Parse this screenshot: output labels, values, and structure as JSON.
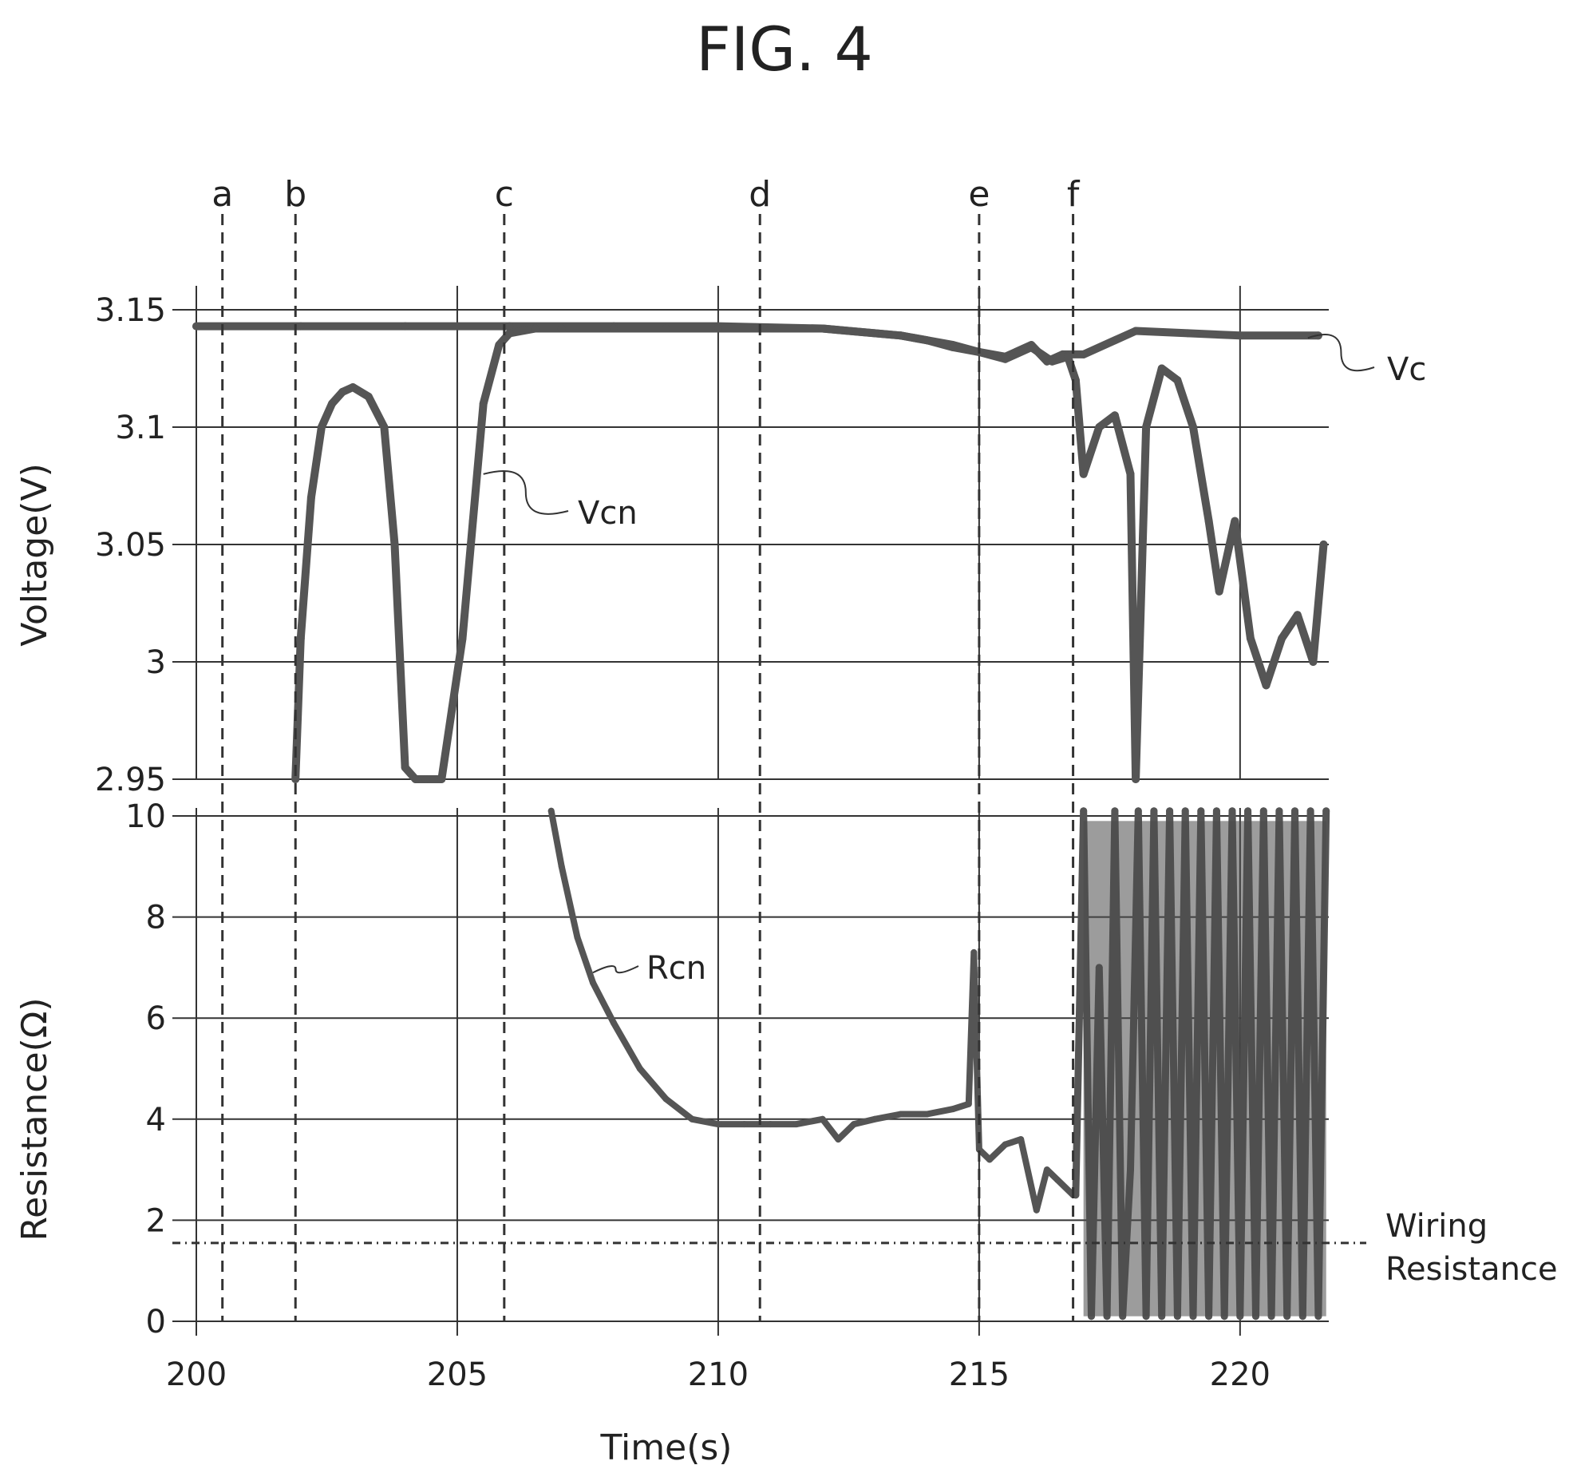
{
  "figure_title": "FIG. 4",
  "chart_data": [
    {
      "type": "line",
      "panel": "voltage",
      "ylabel": "Voltage(V)",
      "xlabel": "",
      "ylim": [
        2.95,
        3.15
      ],
      "xlim": [
        200,
        221.7
      ],
      "yticks": [
        {
          "value": 3.15,
          "label": "3.15"
        },
        {
          "value": 3.1,
          "label": "3.1"
        },
        {
          "value": 3.05,
          "label": "3.05"
        },
        {
          "value": 3.0,
          "label": "3"
        },
        {
          "value": 2.95,
          "label": "2.95"
        }
      ],
      "grid": true,
      "series": [
        {
          "name": "Vc",
          "color": "#555555",
          "x": [
            200,
            202,
            204,
            206,
            208,
            210,
            212,
            213.5,
            214.5,
            215,
            215.5,
            216,
            216.3,
            216.6,
            217,
            218,
            219,
            220,
            221.5
          ],
          "y": [
            3.143,
            3.143,
            3.143,
            3.143,
            3.143,
            3.143,
            3.142,
            3.139,
            3.135,
            3.132,
            3.13,
            3.135,
            3.128,
            3.131,
            3.131,
            3.141,
            3.14,
            3.139,
            3.139
          ]
        },
        {
          "name": "Vcn",
          "color": "#555555",
          "x": [
            201.9,
            202.0,
            202.2,
            202.4,
            202.6,
            202.8,
            203.0,
            203.3,
            203.6,
            203.8,
            204.0,
            204.2,
            204.4,
            204.7,
            204.9,
            205.1,
            205.3,
            205.5,
            205.8,
            206.0,
            206.5,
            207,
            208,
            209,
            210,
            211,
            212,
            212.5,
            213,
            213.5,
            214,
            214.5,
            215,
            215.5,
            216,
            216.4,
            216.7,
            216.85,
            217,
            217.3,
            217.6,
            217.9,
            218.0,
            218.2,
            218.5,
            218.8,
            219.1,
            219.4,
            219.6,
            219.9,
            220.2,
            220.5,
            220.8,
            221.1,
            221.4,
            221.6
          ],
          "y": [
            2.95,
            3.01,
            3.07,
            3.1,
            3.11,
            3.115,
            3.117,
            3.113,
            3.1,
            3.05,
            2.955,
            2.95,
            2.95,
            2.95,
            2.98,
            3.01,
            3.06,
            3.11,
            3.135,
            3.14,
            3.142,
            3.142,
            3.142,
            3.142,
            3.142,
            3.142,
            3.142,
            3.141,
            3.14,
            3.139,
            3.137,
            3.134,
            3.132,
            3.129,
            3.134,
            3.128,
            3.13,
            3.12,
            3.08,
            3.1,
            3.105,
            3.08,
            2.95,
            3.1,
            3.125,
            3.12,
            3.1,
            3.06,
            3.03,
            3.06,
            3.01,
            2.99,
            3.01,
            3.02,
            3.0,
            3.05
          ]
        }
      ],
      "markers": [
        {
          "label": "a",
          "x": 200.5
        },
        {
          "label": "b",
          "x": 201.9
        },
        {
          "label": "c",
          "x": 205.9
        },
        {
          "label": "d",
          "x": 210.8
        },
        {
          "label": "e",
          "x": 215.0
        },
        {
          "label": "f",
          "x": 216.8
        }
      ],
      "annotations": [
        {
          "text": "Vc",
          "series": "Vc"
        },
        {
          "text": "Vcn",
          "series": "Vcn"
        }
      ]
    },
    {
      "type": "line",
      "panel": "resistance",
      "ylabel": "Resistance(Ω)",
      "xlabel": "Time(s)",
      "ylim": [
        0,
        10
      ],
      "xlim": [
        200,
        221.7
      ],
      "yticks": [
        {
          "value": 10,
          "label": "10"
        },
        {
          "value": 8,
          "label": "8"
        },
        {
          "value": 6,
          "label": "6"
        },
        {
          "value": 4,
          "label": "4"
        },
        {
          "value": 2,
          "label": "2"
        },
        {
          "value": 0,
          "label": "0"
        }
      ],
      "xticks": [
        {
          "value": 200,
          "label": "200"
        },
        {
          "value": 205,
          "label": "205"
        },
        {
          "value": 210,
          "label": "210"
        },
        {
          "value": 215,
          "label": "215"
        },
        {
          "value": 220,
          "label": "220"
        }
      ],
      "grid": true,
      "series": [
        {
          "name": "Rcn",
          "color": "#555555",
          "x": [
            206.8,
            207.0,
            207.3,
            207.6,
            208.0,
            208.5,
            209.0,
            209.5,
            210.0,
            210.5,
            211.0,
            211.5,
            212.0,
            212.3,
            212.6,
            213.0,
            213.5,
            214.0,
            214.5,
            214.8,
            214.9,
            215.0,
            215.2,
            215.5,
            215.8,
            216.1,
            216.3,
            216.5,
            216.8
          ],
          "y": [
            10.1,
            9.0,
            7.6,
            6.7,
            5.9,
            5.0,
            4.4,
            4.0,
            3.9,
            3.9,
            3.9,
            3.9,
            4.0,
            3.6,
            3.9,
            4.0,
            4.1,
            4.1,
            4.2,
            4.3,
            7.3,
            3.4,
            3.2,
            3.5,
            3.6,
            2.2,
            3.0,
            2.8,
            2.5
          ]
        },
        {
          "name": "",
          "color": "#555555",
          "x": [
            216.85,
            217.0,
            217.15,
            217.3,
            217.45,
            217.6,
            217.75,
            217.9,
            218.05,
            218.2,
            218.35,
            218.5,
            218.65,
            218.8,
            218.95,
            219.1,
            219.25,
            219.4,
            219.55,
            219.7,
            219.85,
            220.0,
            220.15,
            220.3,
            220.45,
            220.6,
            220.75,
            220.9,
            221.05,
            221.2,
            221.35,
            221.5,
            221.65
          ],
          "y": [
            2.5,
            10.1,
            0.1,
            7.0,
            0.1,
            10.1,
            0.1,
            3.0,
            10.1,
            0.1,
            10.1,
            0.1,
            10.1,
            0.1,
            10.1,
            0.1,
            10.1,
            0.1,
            10.1,
            0.1,
            10.1,
            0.1,
            10.1,
            0.1,
            10.1,
            0.1,
            10.1,
            0.1,
            10.1,
            0.1,
            10.1,
            0.1,
            10.1
          ]
        }
      ],
      "reference_lines": [
        {
          "label": "Wiring Resistance",
          "label_lines": [
            "Wiring",
            "Resistance"
          ],
          "y": 1.55
        }
      ],
      "annotations": [
        {
          "text": "Rcn",
          "series": "Rcn"
        }
      ]
    }
  ]
}
